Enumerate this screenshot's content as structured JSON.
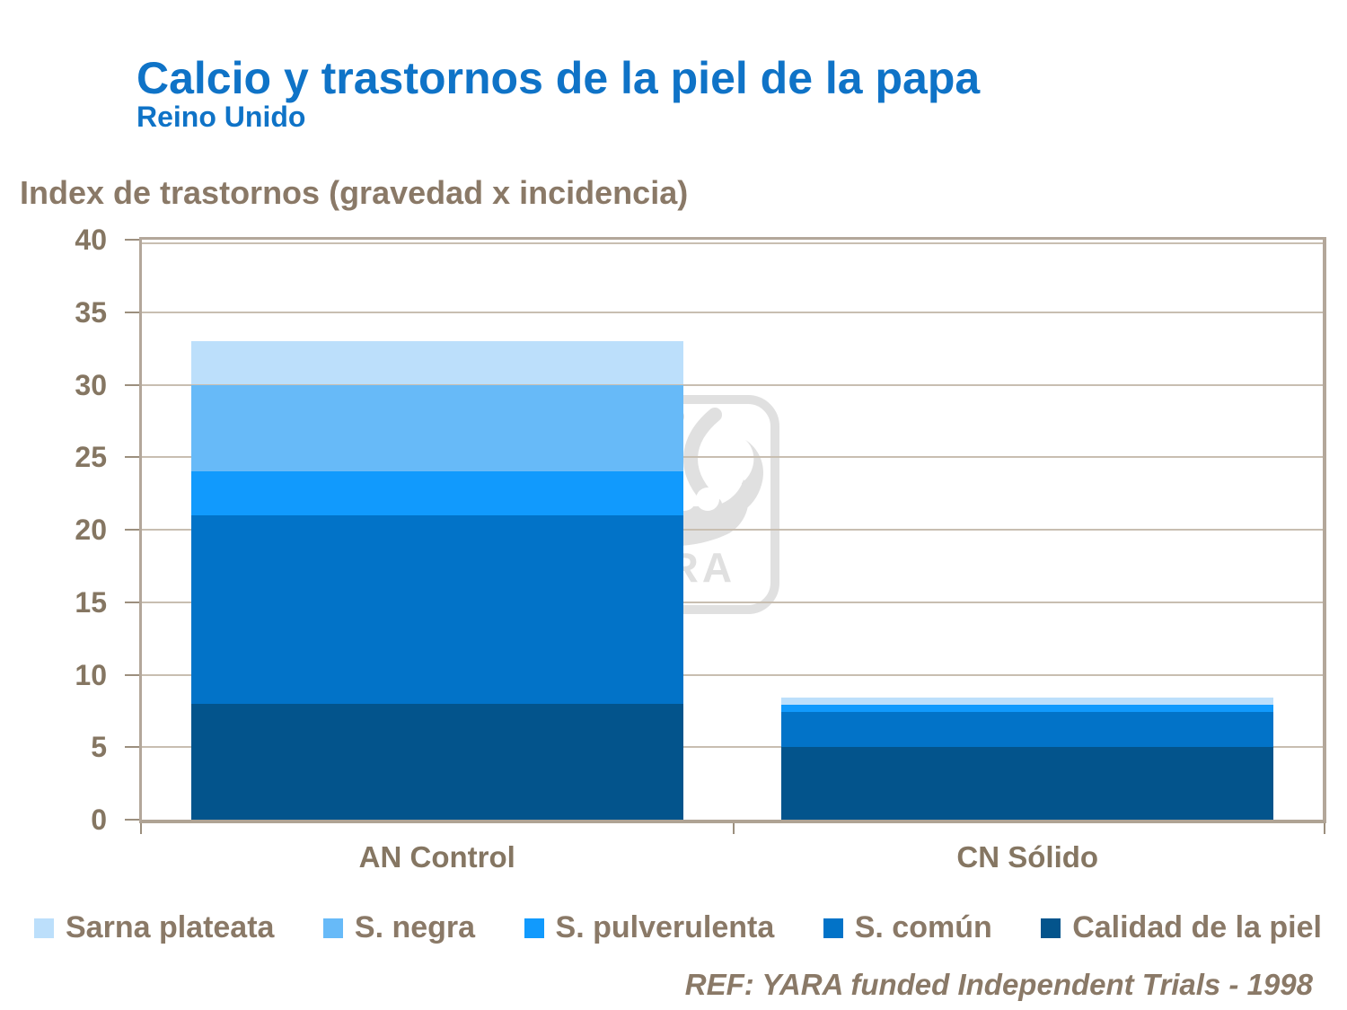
{
  "header": {
    "title": "Calcio y trastornos de la piel de la papa",
    "subtitle": "Reino Unido"
  },
  "footer": {
    "text": "REF: YARA funded Independent Trials - 1998"
  },
  "watermark": {
    "text": "YARA"
  },
  "colors": {
    "title_blue": "#0F73C7",
    "text_brown": "#8A7967",
    "axis_line": "#B3A79A",
    "gridline": "#C8BEB1"
  },
  "chart_data": {
    "type": "bar",
    "stacked": true,
    "title": "Calcio y trastornos de la piel de la papa",
    "subtitle": "Reino Unido",
    "ylabel": "Index de trastornos (gravedad x incidencia)",
    "categories": [
      "AN Control",
      "CN Sólido"
    ],
    "series": [
      {
        "name": "Calidad de la piel",
        "color": "#03548C",
        "values": [
          8,
          5
        ]
      },
      {
        "name": "S. común",
        "color": "#0273C8",
        "values": [
          13,
          2.4
        ]
      },
      {
        "name": "S. pulverulenta",
        "color": "#119AFD",
        "values": [
          3,
          0.5
        ]
      },
      {
        "name": "S. negra",
        "color": "#67BAF8",
        "values": [
          6,
          0
        ]
      },
      {
        "name": "Sarna plateata",
        "color": "#BCDFFB",
        "values": [
          3,
          0.5
        ]
      }
    ],
    "totals": [
      33,
      8.4
    ],
    "ylim": [
      0,
      40
    ],
    "ytick_step": 5,
    "grid": true,
    "legend_position": "bottom",
    "legend_order": [
      "Sarna plateata",
      "S. negra",
      "S. pulverulenta",
      "S. común",
      "Calidad de la piel"
    ]
  }
}
